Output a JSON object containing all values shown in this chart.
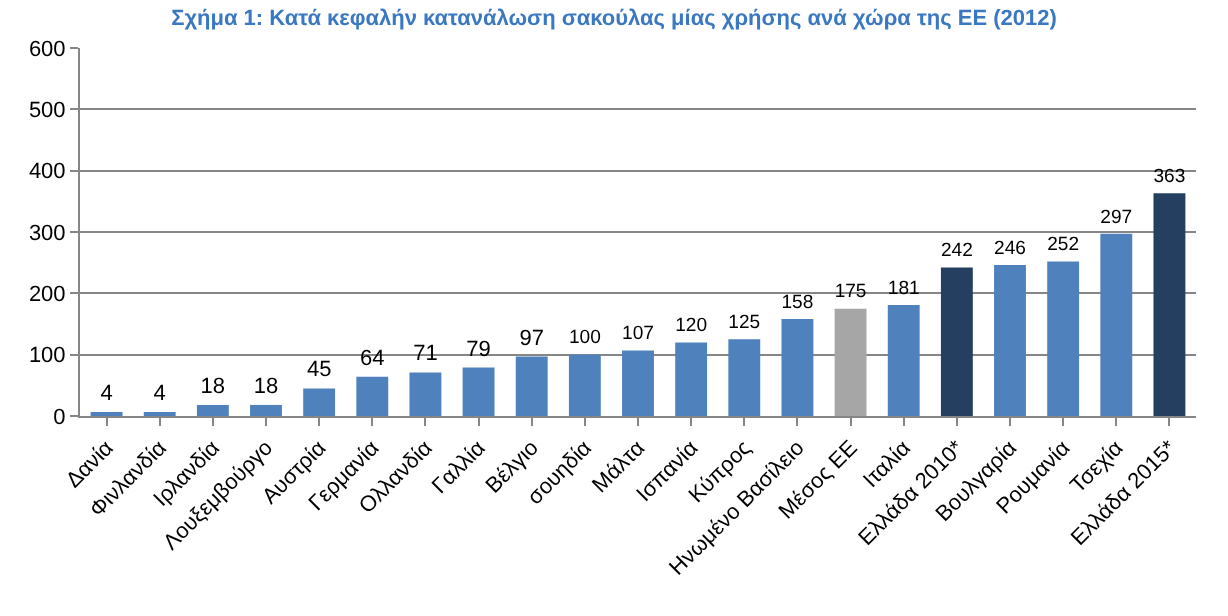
{
  "chart_data": {
    "type": "bar",
    "title": "Σχήμα 1: Κατά κεφαλήν κατανάλωση σακούλας μίας χρήσης ανά χώρα της ΕΕ (2012)",
    "categories": [
      "Δανία",
      "Φινλανδία",
      "Ιρλανδία",
      "Λουξεμβούργο",
      "Αυστρία",
      "Γερμανία",
      "Ολλανδία",
      "Γαλλία",
      "Βέλγιο",
      "σουηδία",
      "Μάλτα",
      "Ισπανία",
      "Κύπρος",
      "Ηνωμένο Βασίλειο",
      "Μέσος ΕΕ",
      "Ιταλία",
      "Ελλάδα 2010*",
      "Βουλγαρία",
      "Ρουμανία",
      "Τσεχία",
      "Ελλάδα 2015*"
    ],
    "values": [
      4,
      4,
      18,
      18,
      45,
      64,
      71,
      79,
      97,
      100,
      107,
      120,
      125,
      158,
      175,
      181,
      242,
      246,
      252,
      297,
      363
    ],
    "colors": [
      "#4f81bd",
      "#4f81bd",
      "#4f81bd",
      "#4f81bd",
      "#4f81bd",
      "#4f81bd",
      "#4f81bd",
      "#4f81bd",
      "#4f81bd",
      "#4f81bd",
      "#4f81bd",
      "#4f81bd",
      "#4f81bd",
      "#4f81bd",
      "#a6a6a6",
      "#4f81bd",
      "#243f60",
      "#4f81bd",
      "#4f81bd",
      "#4f81bd",
      "#243f60"
    ],
    "ylim": [
      0,
      600
    ],
    "yticks": [
      0,
      100,
      200,
      300,
      400,
      500,
      600
    ],
    "grid": "y",
    "data_labels": true
  }
}
